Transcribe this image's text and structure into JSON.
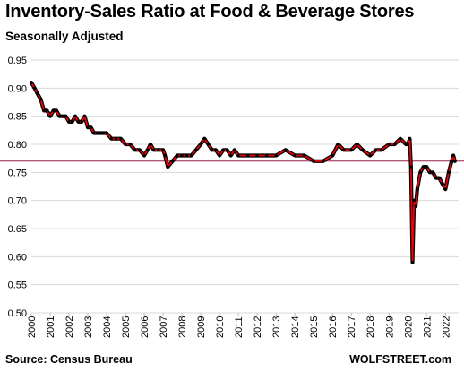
{
  "title": "Inventory-Sales  Ratio at Food & Beverage Stores",
  "subtitle": "Seasonally Adjusted",
  "source": "Source: Census Bureau",
  "brand": "WOLFSTREET.com",
  "chart_data": {
    "type": "line",
    "title": "Inventory-Sales  Ratio at Food & Beverage Stores",
    "subtitle": "Seasonally Adjusted",
    "xlabel": "",
    "ylabel": "",
    "ylim": [
      0.5,
      0.95
    ],
    "yticks": [
      "0.50",
      "0.55",
      "0.60",
      "0.65",
      "0.70",
      "0.75",
      "0.80",
      "0.85",
      "0.90",
      "0.95"
    ],
    "xticks": [
      "2000",
      "2001",
      "2002",
      "2003",
      "2004",
      "2005",
      "2006",
      "2007",
      "2008",
      "2009",
      "2010",
      "2011",
      "2012",
      "2013",
      "2014",
      "2015",
      "2016",
      "2017",
      "2018",
      "2019",
      "2020",
      "2021",
      "2022"
    ],
    "grid": "horizontal",
    "reference_line": 0.77,
    "series": [
      {
        "color": "#e8000b",
        "marker_color": "#000000",
        "x": [
          2000.0,
          2000.17,
          2000.33,
          2000.5,
          2000.67,
          2000.83,
          2001.0,
          2001.17,
          2001.33,
          2001.5,
          2001.67,
          2001.83,
          2002.0,
          2002.17,
          2002.33,
          2002.5,
          2002.67,
          2002.83,
          2003.0,
          2003.17,
          2003.33,
          2003.5,
          2003.67,
          2003.83,
          2004.0,
          2004.25,
          2004.5,
          2004.75,
          2005.0,
          2005.25,
          2005.5,
          2005.75,
          2006.0,
          2006.17,
          2006.33,
          2006.5,
          2006.75,
          2007.0,
          2007.1,
          2007.25,
          2007.5,
          2007.75,
          2008.0,
          2008.25,
          2008.5,
          2008.75,
          2009.0,
          2009.2,
          2009.4,
          2009.6,
          2009.8,
          2010.0,
          2010.2,
          2010.4,
          2010.6,
          2010.8,
          2011.0,
          2011.5,
          2012.0,
          2012.5,
          2013.0,
          2013.5,
          2014.0,
          2014.5,
          2015.0,
          2015.5,
          2016.0,
          2016.3,
          2016.6,
          2017.0,
          2017.3,
          2017.6,
          2018.0,
          2018.3,
          2018.6,
          2019.0,
          2019.3,
          2019.6,
          2019.9,
          2020.0,
          2020.1,
          2020.17,
          2020.25,
          2020.33,
          2020.42,
          2020.5,
          2020.67,
          2020.83,
          2021.0,
          2021.17,
          2021.33,
          2021.5,
          2021.67,
          2021.83,
          2022.0,
          2022.17,
          2022.33,
          2022.42,
          2022.5
        ],
        "values": [
          0.91,
          0.9,
          0.89,
          0.88,
          0.86,
          0.86,
          0.85,
          0.86,
          0.86,
          0.85,
          0.85,
          0.85,
          0.84,
          0.84,
          0.85,
          0.84,
          0.84,
          0.85,
          0.83,
          0.83,
          0.82,
          0.82,
          0.82,
          0.82,
          0.82,
          0.81,
          0.81,
          0.81,
          0.8,
          0.8,
          0.79,
          0.79,
          0.78,
          0.79,
          0.8,
          0.79,
          0.79,
          0.79,
          0.78,
          0.76,
          0.77,
          0.78,
          0.78,
          0.78,
          0.78,
          0.79,
          0.8,
          0.81,
          0.8,
          0.79,
          0.79,
          0.78,
          0.79,
          0.79,
          0.78,
          0.79,
          0.78,
          0.78,
          0.78,
          0.78,
          0.78,
          0.79,
          0.78,
          0.78,
          0.77,
          0.77,
          0.78,
          0.8,
          0.79,
          0.79,
          0.8,
          0.79,
          0.78,
          0.79,
          0.79,
          0.8,
          0.8,
          0.81,
          0.8,
          0.8,
          0.81,
          0.76,
          0.59,
          0.7,
          0.69,
          0.72,
          0.75,
          0.76,
          0.76,
          0.75,
          0.75,
          0.74,
          0.74,
          0.73,
          0.72,
          0.75,
          0.77,
          0.78,
          0.77
        ]
      }
    ]
  }
}
